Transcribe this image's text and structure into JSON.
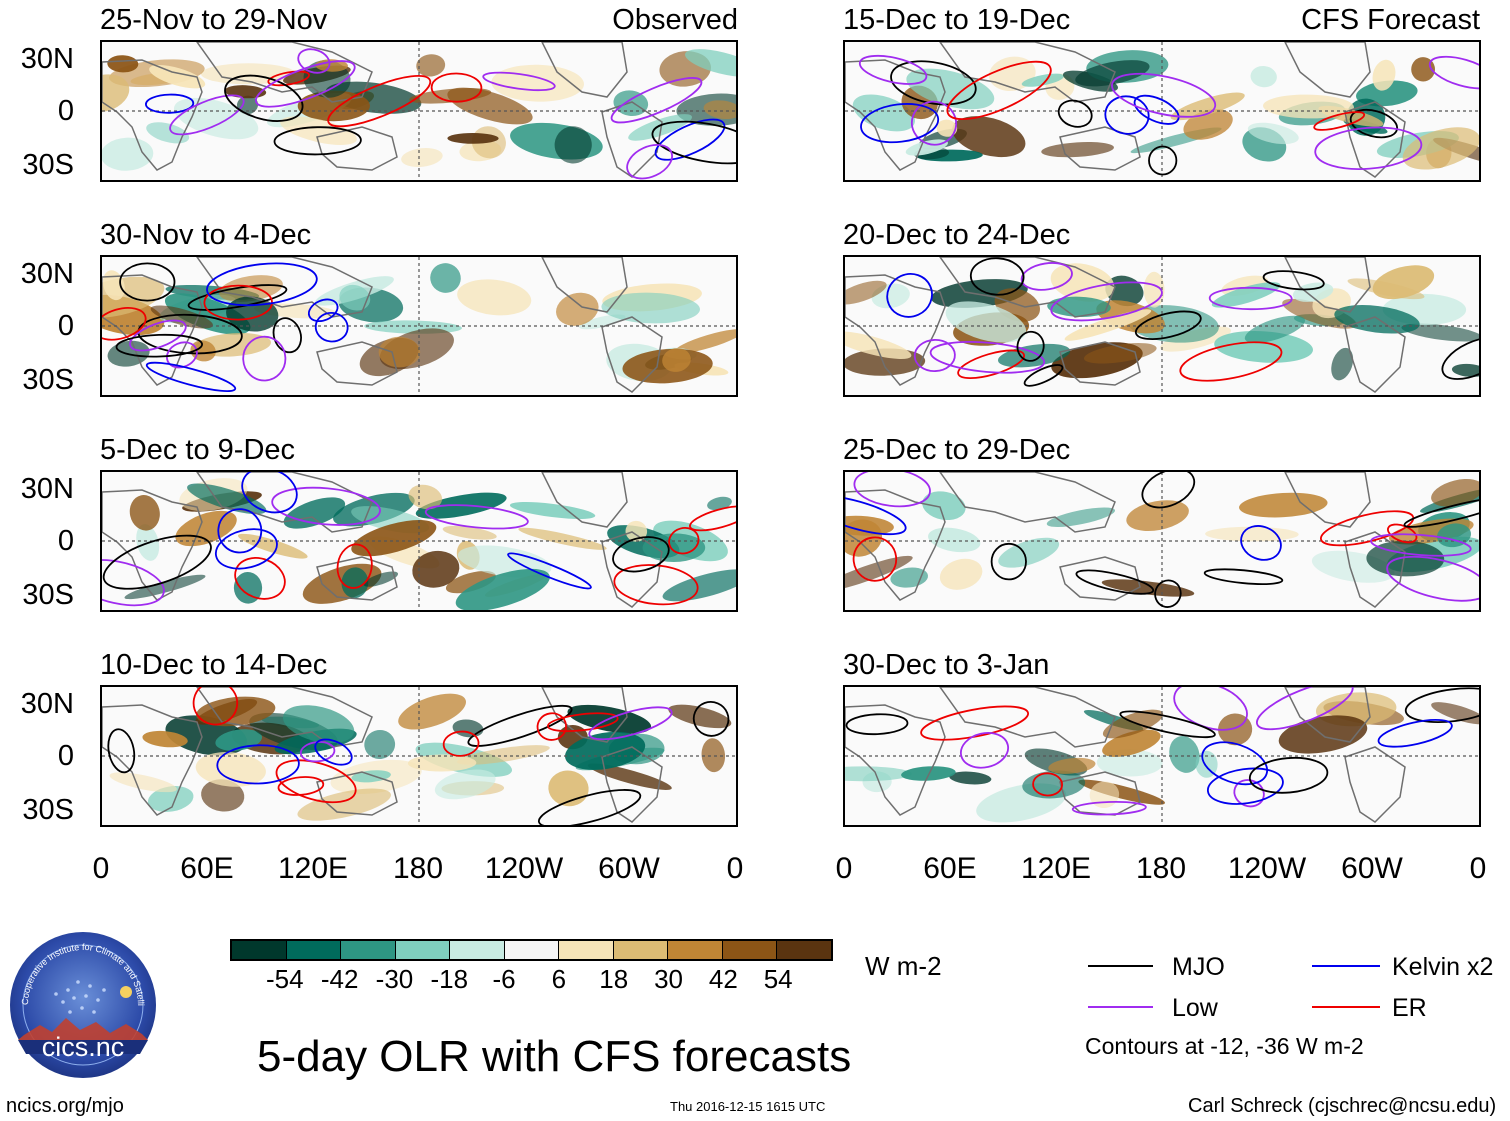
{
  "panels": {
    "left": [
      {
        "period": "25-Nov to 29-Nov",
        "label": "Observed"
      },
      {
        "period": "30-Nov to 4-Dec",
        "label": ""
      },
      {
        "period": "5-Dec to 9-Dec",
        "label": ""
      },
      {
        "period": "10-Dec to 14-Dec",
        "label": ""
      }
    ],
    "right": [
      {
        "period": "15-Dec to 19-Dec",
        "label": "CFS Forecast"
      },
      {
        "period": "20-Dec to 24-Dec",
        "label": ""
      },
      {
        "period": "25-Dec to 29-Dec",
        "label": ""
      },
      {
        "period": "30-Dec to 3-Jan",
        "label": ""
      }
    ]
  },
  "lat_ticks": [
    "30N",
    "0",
    "30S"
  ],
  "lon_ticks": [
    "0",
    "60E",
    "120E",
    "180",
    "120W",
    "60W",
    "0"
  ],
  "colorbar": {
    "ticks": [
      "-54",
      "-42",
      "-30",
      "-18",
      "-6",
      "6",
      "18",
      "30",
      "42",
      "54"
    ],
    "colors": [
      "#00382c",
      "#006b5c",
      "#2e9683",
      "#7fcfbe",
      "#c8ebe2",
      "#f6f6f6",
      "#f6e4b8",
      "#dcbb74",
      "#bf8535",
      "#8c5516",
      "#5a3410"
    ],
    "units": "W m-2"
  },
  "legend": {
    "items": [
      {
        "name": "MJO",
        "color": "#000000"
      },
      {
        "name": "Kelvin x2",
        "color": "#0000ee"
      },
      {
        "name": "Low",
        "color": "#a02cf0"
      },
      {
        "name": "ER",
        "color": "#ee0000"
      }
    ],
    "note": "Contours at -12, -36 W m-2"
  },
  "title": "5-day OLR with CFS forecasts",
  "logo_text": "cics.nc",
  "logo_ring_text": "Cooperative Institute for Climate and Satellites",
  "footer": {
    "left": "ncics.org/mjo",
    "center": "Thu 2016-12-15 1615 UTC",
    "right": "Carl Schreck (cjschrec@ncsu.edu)"
  }
}
